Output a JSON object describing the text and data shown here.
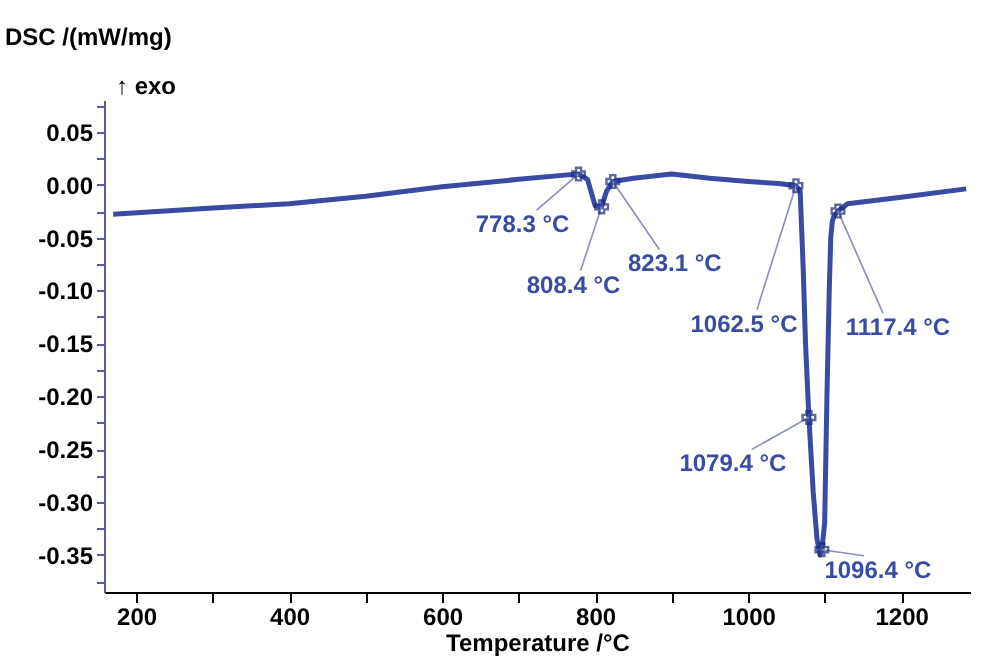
{
  "chart_data": {
    "type": "line",
    "ylabel": "DSC /(mW/mg)",
    "xlabel": "Temperature /°C",
    "x": [
      170,
      300,
      400,
      500,
      600,
      700,
      760,
      778.3,
      790,
      800,
      808.4,
      815,
      823.1,
      850,
      900,
      950,
      1000,
      1040,
      1062.5,
      1068,
      1072,
      1075,
      1079.4,
      1085,
      1090,
      1094,
      1096.4,
      1100,
      1103,
      1106,
      1108,
      1110,
      1112,
      1117.4,
      1130,
      1200,
      1285
    ],
    "series": [
      {
        "color": "#3a4ba3",
        "values": [
          -0.028,
          -0.022,
          -0.018,
          -0.011,
          -0.002,
          0.005,
          0.009,
          0.01,
          0.005,
          -0.02,
          -0.021,
          -0.006,
          0.003,
          0.006,
          0.01,
          0.006,
          0.003,
          0.001,
          -0.001,
          -0.006,
          -0.08,
          -0.15,
          -0.22,
          -0.29,
          -0.335,
          -0.35,
          -0.345,
          -0.32,
          -0.2,
          -0.1,
          -0.05,
          -0.035,
          -0.03,
          -0.025,
          -0.018,
          -0.012,
          -0.004
        ]
      }
    ],
    "xlim": [
      158,
      1290
    ],
    "ylim": [
      -0.385,
      0.08
    ],
    "xticks": [
      200,
      {
        "value": 300,
        "label": null
      },
      400,
      {
        "value": 500,
        "label": null
      },
      600,
      {
        "value": 700,
        "label": null
      },
      800,
      {
        "value": 900,
        "label": null
      },
      1000,
      {
        "value": 1100,
        "label": null
      },
      1200
    ],
    "yticks": [
      {
        "value": -0.375,
        "label": null
      },
      -0.35,
      {
        "value": -0.325,
        "label": null
      },
      {
        "value": -0.3,
        "label": "-0.30"
      },
      {
        "value": -0.275,
        "label": null
      },
      -0.25,
      {
        "value": -0.225,
        "label": null
      },
      {
        "value": -0.2,
        "label": "-0.20"
      },
      {
        "value": -0.175,
        "label": null
      },
      -0.15,
      {
        "value": -0.125,
        "label": null
      },
      {
        "value": -0.1,
        "label": "-0.10"
      },
      {
        "value": -0.075,
        "label": null
      },
      -0.05,
      {
        "value": -0.025,
        "label": null
      },
      {
        "value": 0.0,
        "label": "0.00"
      },
      {
        "value": 0.025,
        "label": null
      },
      0.05,
      {
        "value": 0.075,
        "label": null
      }
    ],
    "grid": false,
    "marker": "none",
    "line_style": "solid",
    "annotations": [
      {
        "text": "778.3 °C",
        "x": 778.3,
        "y": 0.01
      },
      {
        "text": "808.4 °C",
        "x": 808.4,
        "y": -0.021
      },
      {
        "text": "823.1 °C",
        "x": 823.1,
        "y": 0.003
      },
      {
        "text": "1062.5 °C",
        "x": 1062.5,
        "y": -0.001
      },
      {
        "text": "1117.4 °C",
        "x": 1117.4,
        "y": -0.025
      },
      {
        "text": "1079.4 °C",
        "x": 1079.4,
        "y": -0.22
      },
      {
        "text": "1096.4 °C",
        "x": 1096.4,
        "y": -0.345
      },
      "↑ exo"
    ]
  }
}
